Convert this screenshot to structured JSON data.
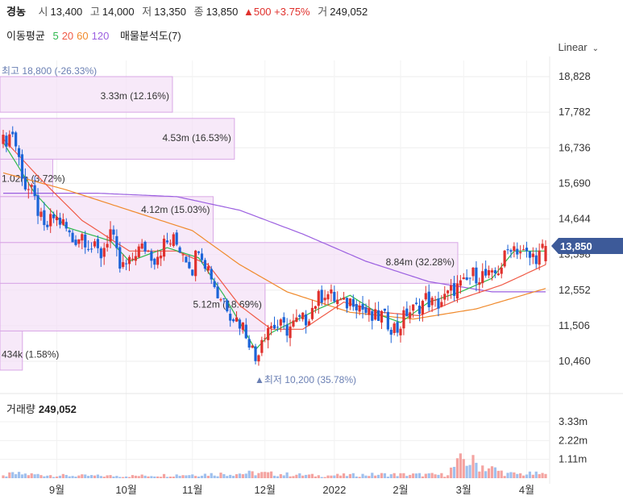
{
  "header": {
    "name": "경농",
    "open_label": "시",
    "open": "13,400",
    "high_label": "고",
    "high": "14,000",
    "low_label": "저",
    "low": "13,350",
    "close_label": "종",
    "close": "13,850",
    "change": "▲500 +3.75%",
    "vol_label": "거",
    "volume": "249,052"
  },
  "ma_legend": {
    "title": "이동평균",
    "items": [
      {
        "label": "5",
        "color": "#2db84d"
      },
      {
        "label": "20",
        "color": "#f05a46"
      },
      {
        "label": "60",
        "color": "#f08a2c"
      },
      {
        "label": "120",
        "color": "#9b5fe0"
      }
    ],
    "profile": "매물분석도(7)"
  },
  "scale_label": "Linear",
  "volume_title": "거래량",
  "volume_value": "249,052",
  "colors": {
    "up": "#e0312d",
    "down": "#1c64d8",
    "profile": "#f3dff7",
    "profile_border": "#d9a7e6",
    "price_tag": "#3d5a99"
  },
  "chart_data": {
    "type": "candlestick",
    "price_axis_ticks": [
      "18,828",
      "17,782",
      "16,736",
      "15,690",
      "14,644",
      "13,598",
      "12,552",
      "11,506",
      "10,460"
    ],
    "price_axis_values": [
      18828,
      17782,
      16736,
      15690,
      14644,
      13598,
      12552,
      11506,
      10460
    ],
    "current_price": "13,850",
    "current_price_value": 13850,
    "high_marker": "최고 18,800 (-26.33%)",
    "high_value": 18800,
    "low_marker": "▲최저 10,200 (35.78%)",
    "low_value": 10200,
    "volume_axis_ticks": [
      "3.33m",
      "2.22m",
      "1.11m"
    ],
    "volume_axis_values": [
      3330000,
      2220000,
      1110000
    ],
    "x_labels": [
      "9월",
      "10월",
      "11월",
      "12월",
      "2022",
      "2월",
      "3월",
      "4월"
    ],
    "x_label_index": [
      17,
      39,
      60,
      83,
      105,
      126,
      146,
      166
    ],
    "volume_profile": [
      {
        "low": 17782,
        "high": 18828,
        "volume": "3.33m (12.16%)",
        "pct": 12.16
      },
      {
        "low": 16400,
        "high": 17600,
        "volume": "4.53m (16.53%)",
        "pct": 16.53
      },
      {
        "low": 15300,
        "high": 16400,
        "volume": "1.02m (3.72%)",
        "pct": 3.72
      },
      {
        "low": 13950,
        "high": 15300,
        "volume": "4.12m (15.03%)",
        "pct": 15.03
      },
      {
        "low": 12750,
        "high": 13950,
        "volume": "8.84m (32.28%)",
        "pct": 32.28
      },
      {
        "low": 11350,
        "high": 12750,
        "volume": "5.12m (18.69%)",
        "pct": 18.69
      },
      {
        "low": 10200,
        "high": 11350,
        "volume": "434k (1.58%)",
        "pct": 1.58
      }
    ],
    "price_keypoints": [
      [
        0,
        16900
      ],
      [
        3,
        17200
      ],
      [
        5,
        16400
      ],
      [
        7,
        15600
      ],
      [
        9,
        15400
      ],
      [
        11,
        14900
      ],
      [
        13,
        14300
      ],
      [
        16,
        14700
      ],
      [
        19,
        14500
      ],
      [
        22,
        14000
      ],
      [
        25,
        14200
      ],
      [
        28,
        13800
      ],
      [
        31,
        13600
      ],
      [
        34,
        14300
      ],
      [
        37,
        13200
      ],
      [
        40,
        13300
      ],
      [
        42,
        13700
      ],
      [
        45,
        13800
      ],
      [
        48,
        13500
      ],
      [
        51,
        13900
      ],
      [
        54,
        14000
      ],
      [
        57,
        13700
      ],
      [
        60,
        13200
      ],
      [
        62,
        13900
      ],
      [
        64,
        13400
      ],
      [
        66,
        13000
      ],
      [
        68,
        12400
      ],
      [
        70,
        12300
      ],
      [
        72,
        11900
      ],
      [
        74,
        11700
      ],
      [
        76,
        11500
      ],
      [
        78,
        11100
      ],
      [
        80,
        10500
      ],
      [
        82,
        11200
      ],
      [
        84,
        11500
      ],
      [
        87,
        11500
      ],
      [
        90,
        11400
      ],
      [
        93,
        11600
      ],
      [
        96,
        11700
      ],
      [
        99,
        12200
      ],
      [
        102,
        12500
      ],
      [
        105,
        12300
      ],
      [
        108,
        12100
      ],
      [
        111,
        12300
      ],
      [
        114,
        12000
      ],
      [
        117,
        11700
      ],
      [
        120,
        11800
      ],
      [
        123,
        11500
      ],
      [
        125,
        11400
      ],
      [
        128,
        11900
      ],
      [
        131,
        12000
      ],
      [
        134,
        12300
      ],
      [
        137,
        12100
      ],
      [
        140,
        12300
      ],
      [
        143,
        12600
      ],
      [
        146,
        12700
      ],
      [
        149,
        13000
      ],
      [
        152,
        13000
      ],
      [
        155,
        12900
      ],
      [
        158,
        13300
      ],
      [
        161,
        13900
      ],
      [
        164,
        13700
      ],
      [
        167,
        13500
      ],
      [
        170,
        13600
      ],
      [
        172,
        13850
      ]
    ],
    "ma_keypoints": {
      "ma5": [
        [
          0,
          16900
        ],
        [
          10,
          15400
        ],
        [
          20,
          14400
        ],
        [
          34,
          14000
        ],
        [
          40,
          13400
        ],
        [
          52,
          13800
        ],
        [
          62,
          13500
        ],
        [
          70,
          12400
        ],
        [
          80,
          10800
        ],
        [
          85,
          11300
        ],
        [
          100,
          12000
        ],
        [
          110,
          12400
        ],
        [
          120,
          11800
        ],
        [
          126,
          11600
        ],
        [
          135,
          12200
        ],
        [
          145,
          12500
        ],
        [
          155,
          12900
        ],
        [
          162,
          13700
        ],
        [
          172,
          13700
        ]
      ],
      "ma20": [
        [
          0,
          17000
        ],
        [
          12,
          15800
        ],
        [
          25,
          14600
        ],
        [
          40,
          13700
        ],
        [
          55,
          13700
        ],
        [
          65,
          13300
        ],
        [
          75,
          12100
        ],
        [
          85,
          11400
        ],
        [
          95,
          11400
        ],
        [
          108,
          12200
        ],
        [
          120,
          11900
        ],
        [
          132,
          11800
        ],
        [
          145,
          12300
        ],
        [
          158,
          12700
        ],
        [
          172,
          13300
        ]
      ],
      "ma60": [
        [
          0,
          16000
        ],
        [
          20,
          15500
        ],
        [
          40,
          14900
        ],
        [
          60,
          14300
        ],
        [
          75,
          13300
        ],
        [
          90,
          12500
        ],
        [
          110,
          11900
        ],
        [
          130,
          11700
        ],
        [
          150,
          12000
        ],
        [
          172,
          12600
        ]
      ],
      "ma120": [
        [
          0,
          15400
        ],
        [
          30,
          15400
        ],
        [
          55,
          15300
        ],
        [
          75,
          14900
        ],
        [
          95,
          14200
        ],
        [
          115,
          13400
        ],
        [
          135,
          12800
        ],
        [
          155,
          12500
        ],
        [
          172,
          12500
        ]
      ]
    },
    "volume_keypoints": [
      [
        0,
        120000
      ],
      [
        3,
        260000
      ],
      [
        20,
        150000
      ],
      [
        40,
        130000
      ],
      [
        60,
        220000
      ],
      [
        80,
        300000
      ],
      [
        100,
        150000
      ],
      [
        120,
        220000
      ],
      [
        140,
        200000
      ],
      [
        146,
        1100000
      ],
      [
        160,
        250000
      ],
      [
        172,
        249052
      ]
    ]
  }
}
